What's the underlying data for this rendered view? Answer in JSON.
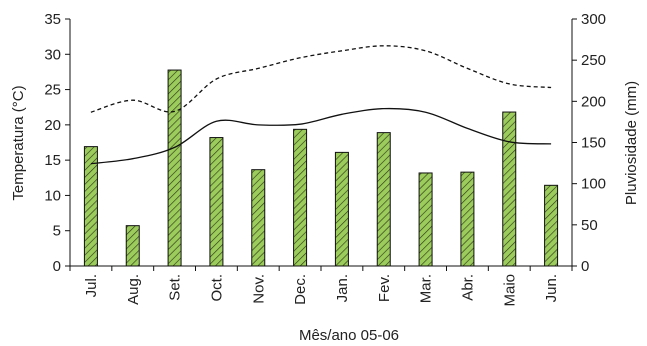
{
  "chart_data": {
    "type": "bar+line",
    "xlabel": "Mês/ano 05-06",
    "ylabel_left": "Temperatura (°C)",
    "ylabel_right": "Pluviosidade (mm)",
    "categories": [
      "Jul.",
      "Aug.",
      "Set.",
      "Oct.",
      "Nov.",
      "Dec.",
      "Jan.",
      "Fev.",
      "Mar.",
      "Abr.",
      "Maio",
      "Jun."
    ],
    "ylim_left": [
      0,
      35
    ],
    "yticks_left": [
      0,
      5,
      10,
      15,
      20,
      25,
      30,
      35
    ],
    "ylim_right": [
      0,
      300
    ],
    "yticks_right": [
      0,
      50,
      100,
      150,
      200,
      250,
      300
    ],
    "grid": false,
    "legend": "none",
    "bars": {
      "axis": "right",
      "fill": "#9ccc5c",
      "hatch": true,
      "values": [
        145,
        49,
        238,
        156,
        117,
        166,
        138,
        162,
        113,
        114,
        187,
        98
      ]
    },
    "lines": [
      {
        "axis": "left",
        "style": "solid",
        "color": "#111111",
        "values": [
          14.5,
          15.2,
          16.8,
          20.5,
          20.0,
          20.1,
          21.5,
          22.3,
          21.8,
          19.5,
          17.6,
          17.3
        ]
      },
      {
        "axis": "left",
        "style": "dashed",
        "color": "#111111",
        "values": [
          21.8,
          23.5,
          21.9,
          26.5,
          28.0,
          29.5,
          30.5,
          31.2,
          30.5,
          28.0,
          25.8,
          25.3
        ]
      }
    ]
  }
}
